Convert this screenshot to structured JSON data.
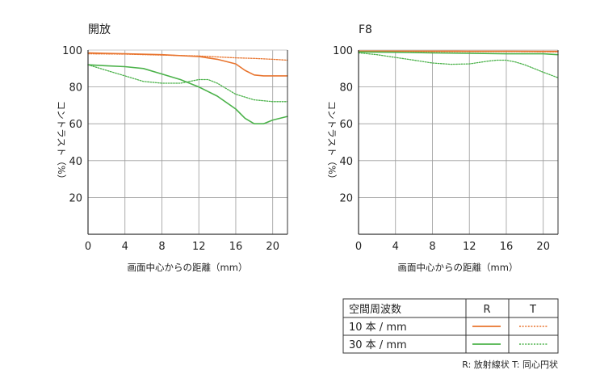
{
  "colors": {
    "r10": "#e8742e",
    "t10": "#e8742e",
    "r30": "#4bb24a",
    "t30": "#4bb24a",
    "grid": "#9a9a9a",
    "axis": "#333333"
  },
  "chart_data": [
    {
      "type": "line",
      "title": "開放",
      "xlabel": "画面中心からの距離（mm）",
      "ylabel": "コントラスト（%）",
      "xlim": [
        0,
        21.6
      ],
      "ylim": [
        0,
        100
      ],
      "xticks": [
        "0",
        "4",
        "8",
        "12",
        "16",
        "20"
      ],
      "yticks": [
        "20",
        "40",
        "60",
        "80",
        "100"
      ],
      "grid": true,
      "series": [
        {
          "key": "r10",
          "x": [
            0,
            4,
            8,
            12,
            14,
            16,
            17,
            18,
            19,
            20,
            21.6
          ],
          "y": [
            98.5,
            98,
            97.5,
            96.5,
            95,
            92.5,
            89,
            86.5,
            86,
            86,
            86
          ]
        },
        {
          "key": "t10",
          "x": [
            0,
            4,
            8,
            12,
            16,
            18,
            20,
            21.6
          ],
          "y": [
            98,
            97.8,
            97.3,
            96.8,
            95.8,
            95.5,
            95,
            94.5
          ]
        },
        {
          "key": "r30",
          "x": [
            0,
            2,
            4,
            6,
            8,
            10,
            12,
            14,
            16,
            17,
            18,
            19,
            20,
            21.6
          ],
          "y": [
            92,
            91.5,
            91,
            90,
            87,
            84,
            80,
            75,
            68,
            63,
            60,
            60,
            62,
            64
          ]
        },
        {
          "key": "t30",
          "x": [
            0,
            2,
            4,
            6,
            8,
            10,
            11,
            12,
            13,
            14,
            16,
            18,
            20,
            21.6
          ],
          "y": [
            92,
            89,
            86,
            83,
            82,
            82,
            83,
            84,
            84,
            82,
            76,
            73,
            72,
            72
          ]
        }
      ]
    },
    {
      "type": "line",
      "title": "F8",
      "xlabel": "画面中心からの距離（mm）",
      "ylabel": "コントラスト（%）",
      "xlim": [
        0,
        21.6
      ],
      "ylim": [
        0,
        100
      ],
      "xticks": [
        "0",
        "4",
        "8",
        "12",
        "16",
        "20"
      ],
      "yticks": [
        "20",
        "40",
        "60",
        "80",
        "100"
      ],
      "grid": true,
      "series": [
        {
          "key": "r10",
          "x": [
            0,
            4,
            8,
            12,
            16,
            20,
            21.6
          ],
          "y": [
            99.5,
            99.5,
            99.5,
            99.4,
            99.4,
            99.3,
            99.3
          ]
        },
        {
          "key": "t10",
          "x": [
            0,
            4,
            8,
            12,
            16,
            20,
            21.6
          ],
          "y": [
            99.3,
            99.3,
            99.2,
            99.2,
            99.2,
            99.1,
            99
          ]
        },
        {
          "key": "r30",
          "x": [
            0,
            4,
            8,
            12,
            16,
            18,
            20,
            21.6
          ],
          "y": [
            99,
            98.8,
            98.5,
            98.3,
            98,
            98,
            98,
            97.5
          ]
        },
        {
          "key": "t30",
          "x": [
            0,
            2,
            4,
            6,
            8,
            10,
            12,
            14,
            15,
            16,
            17,
            18,
            19,
            20,
            21.6
          ],
          "y": [
            98.5,
            97.5,
            96,
            94.5,
            93,
            92.3,
            92.5,
            94,
            94.5,
            94.5,
            93.5,
            92,
            90,
            88,
            85
          ]
        }
      ]
    }
  ],
  "legend": {
    "header": "空間周波数",
    "col_r": "R",
    "col_t": "T",
    "row1": "10 本 / mm",
    "row2": "30 本 / mm",
    "note": "R: 放射線状 T: 同心円状"
  }
}
